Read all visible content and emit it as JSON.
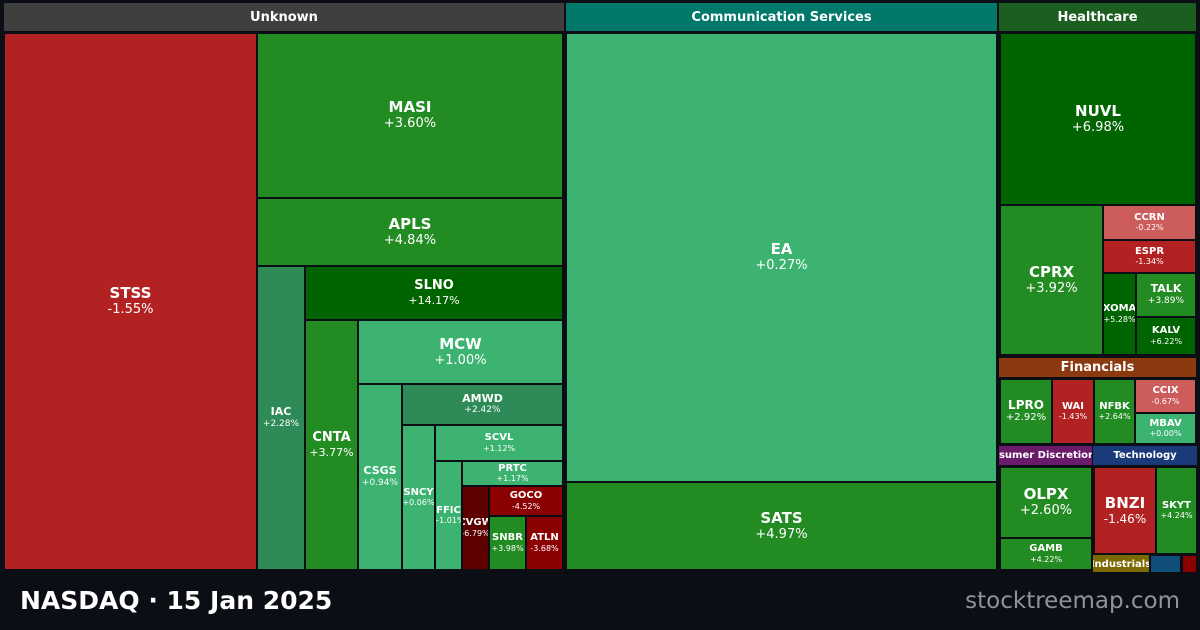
{
  "colors": {
    "strong_up": "#006400",
    "up": "#228b22",
    "mild_up": "#2e8b57",
    "light_up": "#3cb371",
    "light_down": "#cd5c5c",
    "down": "#b22222",
    "strong_down": "#8b0000",
    "deepest_down": "#5c0000",
    "header_unknown": "#3f3f3f",
    "header_communication": "#00796b",
    "header_healthcare": "#1b5e20",
    "header_financials": "#8b3a0f",
    "header_consumer": "#6a1b6a",
    "header_technology": "#1a3a7a",
    "header_industrials": "#7a6a00",
    "header_blue": "#0f4f7a"
  },
  "chart_data": {
    "type": "treemap",
    "exchange": "NASDAQ",
    "date": "15 Jan 2025",
    "sectors": [
      {
        "name": "Unknown",
        "tickers": [
          {
            "symbol": "STSS",
            "change": "-1.55%"
          },
          {
            "symbol": "MASI",
            "change": "+3.60%"
          },
          {
            "symbol": "APLS",
            "change": "+4.84%"
          },
          {
            "symbol": "SLNO",
            "change": "+14.17%"
          },
          {
            "symbol": "MCW",
            "change": "+1.00%"
          },
          {
            "symbol": "IAC",
            "change": "+2.28%"
          },
          {
            "symbol": "CNTA",
            "change": "+3.77%"
          },
          {
            "symbol": "CSGS",
            "change": "+0.94%"
          },
          {
            "symbol": "AMWD",
            "change": "+2.42%"
          },
          {
            "symbol": "SCVL",
            "change": "+1.12%"
          },
          {
            "symbol": "SNCY",
            "change": "+0.06%"
          },
          {
            "symbol": "PRTC",
            "change": "+1.17%"
          },
          {
            "symbol": "FFIC",
            "change": "+1.01%"
          },
          {
            "symbol": "CVGW",
            "change": "-6.79%"
          },
          {
            "symbol": "GOCO",
            "change": "-4.52%"
          },
          {
            "symbol": "SNBR",
            "change": "+3.98%"
          },
          {
            "symbol": "ATLN",
            "change": "-3.68%"
          }
        ]
      },
      {
        "name": "Communication Services",
        "tickers": [
          {
            "symbol": "EA",
            "change": "+0.27%"
          },
          {
            "symbol": "SATS",
            "change": "+4.97%"
          }
        ]
      },
      {
        "name": "Healthcare",
        "tickers": [
          {
            "symbol": "NUVL",
            "change": "+6.98%"
          },
          {
            "symbol": "CPRX",
            "change": "+3.92%"
          },
          {
            "symbol": "CCRN",
            "change": "-0.22%"
          },
          {
            "symbol": "ESPR",
            "change": "-1.34%"
          },
          {
            "symbol": "XOMA",
            "change": "+5.28%"
          },
          {
            "symbol": "TALK",
            "change": "+3.89%"
          },
          {
            "symbol": "KALV",
            "change": "+6.22%"
          }
        ]
      },
      {
        "name": "Financials",
        "tickers": [
          {
            "symbol": "LPRO",
            "change": "+2.92%"
          },
          {
            "symbol": "WAI",
            "change": "-1.43%"
          },
          {
            "symbol": "NFBK",
            "change": "+2.64%"
          },
          {
            "symbol": "CCIX",
            "change": "-0.67%"
          },
          {
            "symbol": "MBAV",
            "change": "+0.00%"
          }
        ]
      },
      {
        "name": "Consumer Discretionary",
        "tickers": [
          {
            "symbol": "OLPX",
            "change": "+2.60%"
          },
          {
            "symbol": "GAMB",
            "change": "+4.22%"
          }
        ]
      },
      {
        "name": "Technology",
        "tickers": [
          {
            "symbol": "BNZI",
            "change": "-1.46%"
          },
          {
            "symbol": "SKYT",
            "change": "+4.24%"
          }
        ]
      },
      {
        "name": "Industrials",
        "tickers": []
      }
    ]
  },
  "footer": {
    "title": "NASDAQ  ·  15 Jan 2025",
    "watermark": "stocktreemap.com"
  }
}
